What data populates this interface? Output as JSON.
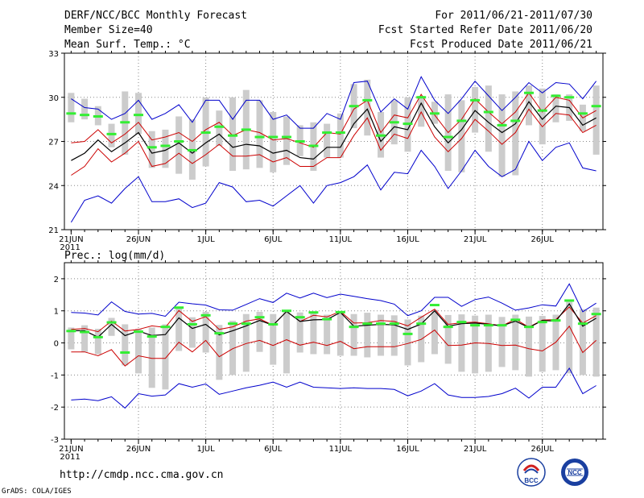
{
  "header": {
    "title": "DERF/NCC/BCC Monthly Forecast",
    "member_size": "Member Size=40",
    "period": "For 2011/06/21-2011/07/30",
    "started_refer": "Fcst Started Refer Date 2011/06/20",
    "produced": "Fcst Produced Date 2011/06/21"
  },
  "footer": {
    "url": "http://cmdp.ncc.cma.gov.cn",
    "grads": "GrADS: COLA/IGES",
    "logo_bcc_text": "BCC",
    "logo_ncc_text": "NCC"
  },
  "colors": {
    "envelope": "#0000cc",
    "spread": "#cc0000",
    "mean": "#000000",
    "obs_bar": "#cccccc",
    "marker": "#33ee33"
  },
  "chart_data": [
    {
      "type": "line",
      "title": "Mean Surf. Temp.: °C",
      "ylim": [
        21,
        33
      ],
      "yticks": [
        21,
        24,
        27,
        30,
        33
      ],
      "x_tick_labels": [
        "21JUN",
        "26JUN",
        "1JUL",
        "6JUL",
        "11JUL",
        "16JUL",
        "21JUL",
        "26JUL"
      ],
      "x_tick_days": [
        0,
        5,
        10,
        15,
        20,
        25,
        30,
        35
      ],
      "year_label": "2011",
      "days": 40,
      "series": [
        {
          "name": "max",
          "values": [
            29.9,
            29.3,
            29.2,
            28.5,
            28.9,
            29.8,
            28.5,
            28.9,
            29.5,
            28.3,
            29.8,
            29.8,
            28.5,
            29.8,
            29.8,
            28.5,
            28.8,
            27.9,
            27.9,
            28.9,
            28.5,
            31.0,
            31.1,
            29.0,
            29.9,
            29.2,
            31.4,
            29.8,
            28.9,
            29.9,
            31.1,
            30.1,
            29.1,
            30.0,
            31.0,
            30.3,
            31.0,
            30.9,
            29.9,
            31.1
          ]
        },
        {
          "name": "upper",
          "values": [
            26.9,
            27.0,
            27.8,
            26.9,
            27.5,
            28.3,
            27.1,
            27.3,
            27.6,
            27.0,
            27.8,
            28.3,
            27.4,
            27.8,
            27.6,
            27.1,
            27.2,
            26.9,
            26.6,
            27.6,
            27.5,
            29.2,
            29.8,
            27.6,
            28.8,
            28.6,
            30.2,
            28.8,
            27.6,
            28.5,
            29.9,
            29.0,
            28.2,
            29.0,
            30.3,
            29.0,
            30.0,
            29.8,
            28.6,
            29.1
          ]
        },
        {
          "name": "mean",
          "values": [
            25.7,
            26.2,
            27.1,
            26.3,
            26.9,
            27.6,
            26.2,
            26.4,
            26.9,
            26.2,
            26.9,
            27.5,
            26.6,
            26.8,
            26.7,
            26.2,
            26.4,
            25.9,
            25.8,
            26.6,
            26.6,
            28.2,
            29.2,
            27.0,
            28.0,
            27.8,
            29.6,
            28.0,
            26.9,
            27.8,
            29.1,
            28.3,
            27.6,
            28.2,
            29.7,
            28.5,
            29.4,
            29.3,
            28.1,
            28.6
          ]
        },
        {
          "name": "lower",
          "values": [
            24.7,
            25.3,
            26.5,
            25.6,
            26.2,
            27.0,
            25.3,
            25.5,
            26.2,
            25.5,
            26.1,
            26.8,
            26.0,
            26.0,
            26.1,
            25.6,
            25.9,
            25.3,
            25.3,
            25.9,
            25.9,
            27.4,
            28.6,
            26.4,
            27.5,
            27.2,
            29.0,
            27.3,
            26.3,
            27.2,
            28.5,
            27.7,
            26.8,
            27.6,
            29.2,
            28.0,
            28.9,
            28.8,
            27.6,
            28.1
          ]
        },
        {
          "name": "min",
          "values": [
            21.5,
            23.0,
            23.3,
            22.8,
            23.8,
            24.6,
            22.9,
            22.9,
            23.1,
            22.5,
            22.8,
            24.2,
            23.9,
            22.9,
            23.0,
            22.6,
            23.3,
            24.0,
            22.8,
            24.0,
            24.2,
            24.6,
            25.4,
            23.7,
            24.9,
            24.8,
            26.4,
            25.3,
            23.8,
            25.0,
            26.4,
            25.3,
            24.6,
            25.1,
            27.0,
            25.7,
            26.6,
            26.9,
            25.2,
            25.0
          ]
        },
        {
          "name": "marker",
          "values": [
            28.9,
            28.8,
            28.7,
            27.5,
            28.3,
            28.8,
            26.6,
            26.7,
            27.0,
            26.4,
            27.6,
            28.0,
            27.4,
            27.8,
            27.3,
            27.3,
            27.3,
            27.0,
            26.7,
            27.6,
            27.6,
            29.4,
            29.8,
            27.4,
            28.3,
            28.2,
            30.0,
            28.9,
            27.3,
            28.4,
            29.8,
            29.0,
            28.1,
            28.4,
            30.3,
            29.1,
            30.1,
            30.0,
            28.9,
            29.4
          ]
        },
        {
          "name": "bar_top",
          "values": [
            30.3,
            29.9,
            29.4,
            28.2,
            30.4,
            30.3,
            27.7,
            27.8,
            28.7,
            28.5,
            30.0,
            29.1,
            30.0,
            30.5,
            29.8,
            29.0,
            28.7,
            28.1,
            28.3,
            28.2,
            28.9,
            30.9,
            31.2,
            29.0,
            29.8,
            30.0,
            30.1,
            29.7,
            30.2,
            29.8,
            30.7,
            30.8,
            30.2,
            30.4,
            30.8,
            30.6,
            30.2,
            30.2,
            29.5,
            30.8
          ]
        },
        {
          "name": "bar_bottom",
          "values": [
            28.3,
            28.5,
            28.1,
            26.6,
            26.1,
            27.5,
            25.2,
            25.2,
            24.8,
            24.4,
            25.3,
            26.7,
            25.0,
            25.1,
            25.2,
            24.9,
            25.4,
            26.0,
            25.0,
            25.9,
            25.9,
            27.9,
            27.4,
            25.9,
            26.8,
            26.3,
            28.0,
            28.2,
            25.0,
            24.9,
            27.6,
            26.3,
            24.6,
            24.7,
            28.1,
            26.8,
            28.3,
            28.4,
            27.7,
            26.1
          ]
        }
      ]
    },
    {
      "type": "line",
      "title": "Prec.: log(mm/d)",
      "ylim": [
        -3,
        2.5
      ],
      "yticks": [
        -3,
        -2,
        -1,
        0,
        1,
        2
      ],
      "x_tick_labels": [
        "21JUN",
        "26JUN",
        "1JUL",
        "6JUL",
        "11JUL",
        "16JUL",
        "21JUL",
        "26JUL"
      ],
      "x_tick_days": [
        0,
        5,
        10,
        15,
        20,
        25,
        30,
        35
      ],
      "year_label": "2011",
      "days": 40,
      "series": [
        {
          "name": "max",
          "values": [
            0.95,
            0.93,
            0.87,
            1.28,
            0.98,
            0.9,
            0.92,
            0.83,
            1.27,
            1.22,
            1.18,
            1.03,
            1.02,
            1.2,
            1.38,
            1.26,
            1.55,
            1.4,
            1.55,
            1.41,
            1.52,
            1.45,
            1.38,
            1.32,
            1.21,
            0.85,
            1.0,
            1.42,
            1.42,
            1.14,
            1.35,
            1.43,
            1.24,
            1.02,
            1.09,
            1.19,
            1.15,
            1.84,
            0.97,
            1.24
          ]
        },
        {
          "name": "upper",
          "values": [
            0.42,
            0.45,
            0.35,
            0.68,
            0.37,
            0.42,
            0.53,
            0.48,
            1.01,
            0.67,
            0.82,
            0.42,
            0.5,
            0.68,
            0.75,
            0.55,
            0.98,
            0.67,
            0.86,
            0.81,
            0.98,
            0.62,
            0.63,
            0.7,
            0.67,
            0.53,
            0.8,
            1.05,
            0.58,
            0.63,
            0.65,
            0.6,
            0.53,
            0.74,
            0.49,
            0.71,
            0.73,
            1.12,
            0.62,
            0.85
          ]
        },
        {
          "name": "mean",
          "values": [
            0.38,
            0.38,
            0.18,
            0.58,
            0.23,
            0.37,
            0.23,
            0.26,
            0.78,
            0.45,
            0.58,
            0.25,
            0.38,
            0.53,
            0.7,
            0.55,
            0.98,
            0.67,
            0.72,
            0.73,
            0.95,
            0.52,
            0.55,
            0.58,
            0.56,
            0.42,
            0.59,
            1.0,
            0.52,
            0.6,
            0.62,
            0.58,
            0.53,
            0.68,
            0.48,
            0.7,
            0.68,
            1.22,
            0.52,
            0.77
          ]
        },
        {
          "name": "lower",
          "values": [
            -0.28,
            -0.28,
            -0.4,
            -0.21,
            -0.72,
            -0.4,
            -0.48,
            -0.48,
            0.02,
            -0.28,
            0.08,
            -0.43,
            -0.18,
            -0.02,
            0.08,
            -0.08,
            0.1,
            -0.07,
            0.02,
            -0.08,
            0.05,
            -0.18,
            -0.12,
            -0.12,
            -0.12,
            -0.02,
            0.11,
            0.4,
            -0.08,
            -0.07,
            0.0,
            -0.02,
            -0.08,
            -0.07,
            -0.18,
            -0.25,
            0.02,
            0.52,
            -0.3,
            0.08
          ]
        },
        {
          "name": "min",
          "values": [
            -1.78,
            -1.75,
            -1.8,
            -1.68,
            -2.03,
            -1.58,
            -1.66,
            -1.62,
            -1.27,
            -1.38,
            -1.28,
            -1.6,
            -1.5,
            -1.4,
            -1.32,
            -1.22,
            -1.38,
            -1.22,
            -1.38,
            -1.4,
            -1.42,
            -1.4,
            -1.42,
            -1.42,
            -1.45,
            -1.65,
            -1.5,
            -1.27,
            -1.62,
            -1.7,
            -1.7,
            -1.67,
            -1.58,
            -1.41,
            -1.72,
            -1.38,
            -1.38,
            -0.79,
            -1.58,
            -1.33
          ]
        },
        {
          "name": "marker",
          "values": [
            0.37,
            0.34,
            0.18,
            0.64,
            -0.3,
            0.35,
            0.2,
            0.5,
            1.1,
            0.58,
            0.86,
            0.3,
            0.6,
            0.6,
            0.8,
            0.58,
            1.0,
            0.8,
            0.95,
            0.74,
            0.96,
            0.5,
            0.6,
            0.6,
            0.6,
            0.28,
            0.6,
            1.18,
            0.5,
            0.65,
            0.55,
            0.55,
            0.55,
            0.72,
            0.5,
            0.65,
            0.7,
            1.32,
            0.6,
            0.9
          ]
        },
        {
          "name": "bar_top",
          "values": [
            0.48,
            0.55,
            0.44,
            0.78,
            0.58,
            0.44,
            0.48,
            0.58,
            1.08,
            0.8,
            0.97,
            0.56,
            0.69,
            0.9,
            0.97,
            0.9,
            1.0,
            0.95,
            0.92,
            0.88,
            0.99,
            0.9,
            0.94,
            0.88,
            0.86,
            0.73,
            0.85,
            1.03,
            0.87,
            0.89,
            0.85,
            0.88,
            0.81,
            0.88,
            0.82,
            0.84,
            0.88,
            1.28,
            1.05,
            1.1
          ]
        },
        {
          "name": "bar_bottom",
          "values": [
            -0.2,
            -0.28,
            -0.35,
            0.22,
            -0.7,
            -0.95,
            -1.4,
            -1.45,
            -0.25,
            -0.15,
            -0.3,
            -1.15,
            -1.0,
            -0.9,
            -0.28,
            -0.68,
            -0.95,
            -0.3,
            -0.35,
            -0.35,
            -0.4,
            -0.4,
            -0.45,
            -0.4,
            -0.4,
            -0.7,
            -0.6,
            -0.35,
            -0.65,
            -0.9,
            -0.95,
            -0.9,
            -0.75,
            -0.85,
            -1.05,
            -0.9,
            -0.85,
            -0.95,
            -1.0,
            -1.05
          ]
        }
      ]
    }
  ]
}
